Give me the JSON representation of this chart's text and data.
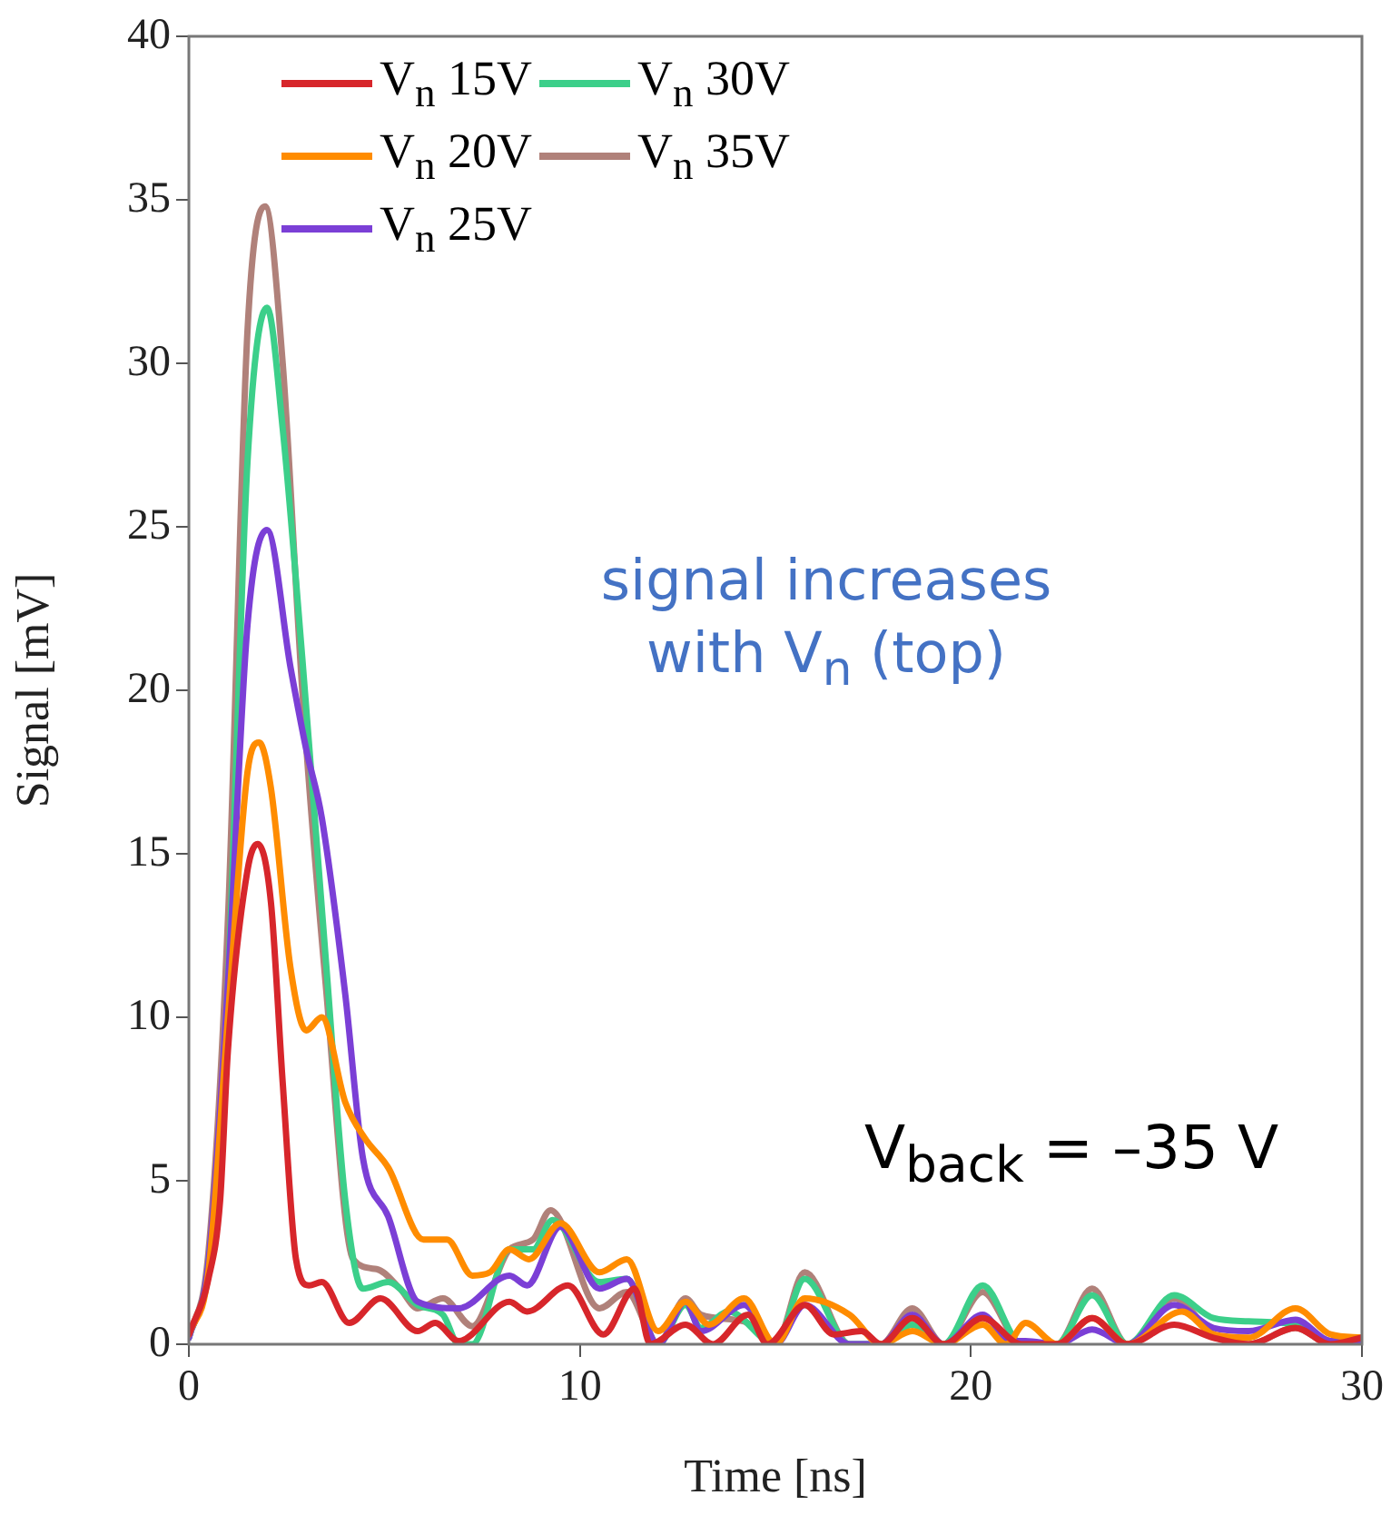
{
  "chart_data": {
    "type": "line",
    "xlabel": "Time [ns]",
    "ylabel": "Signal [mV]",
    "xlim": [
      0,
      30
    ],
    "ylim": [
      0,
      40
    ],
    "xticks": [
      0,
      10,
      20,
      30
    ],
    "yticks": [
      0,
      5,
      10,
      15,
      20,
      25,
      30,
      35,
      40
    ],
    "grid": false,
    "legend": "top left",
    "marker": "none",
    "line_style": "solid",
    "annotations": [
      "signal increases with V$_{n}$ (top)",
      "V$_{back}$ = –35 V"
    ],
    "series": [
      {
        "name": "V$_{n}$ 15V",
        "color": "#d7262b",
        "x": [
          0,
          0.5,
          0.8,
          1.0,
          1.5,
          1.76,
          2.1,
          2.4,
          2.74,
          3.07,
          3.4,
          4.1,
          4.9,
          5.85,
          6.3,
          6.9,
          8.2,
          8.65,
          9.7,
          10.6,
          11.4,
          11.8,
          12.7,
          13.4,
          14.3,
          14.8,
          15.75,
          16.5,
          17.2,
          17.7,
          18.5,
          19.3,
          20.3,
          21.3,
          22.2,
          23.1,
          24.0,
          25.2,
          26.2,
          27.1,
          28.3,
          29.2,
          30
        ],
        "values": [
          0.3,
          2,
          4.4,
          9,
          14.5,
          15.3,
          13.5,
          8,
          2.6,
          1.8,
          1.9,
          0.65,
          1.4,
          0.4,
          0.65,
          0.1,
          1.3,
          1.0,
          1.8,
          0.3,
          1.7,
          0,
          0.6,
          0,
          0.9,
          0,
          1.2,
          0.3,
          0.4,
          0,
          0.8,
          0,
          0.8,
          0,
          0,
          0.8,
          0,
          0.6,
          0.2,
          0,
          0.5,
          0,
          0.2
        ]
      },
      {
        "name": "V$_{n}$ 20V",
        "color": "#ff8c00",
        "x": [
          0,
          0.5,
          1.0,
          1.5,
          1.8,
          2.1,
          2.6,
          3.0,
          3.4,
          4.0,
          4.5,
          5.1,
          6.0,
          6.6,
          7.25,
          7.7,
          8.2,
          8.7,
          9.5,
          10.5,
          11.2,
          12.0,
          12.7,
          13.3,
          14.2,
          15.0,
          15.75,
          16.9,
          17.7,
          18.5,
          19.3,
          20.3,
          20.9,
          21.4,
          22.2,
          23.1,
          24.0,
          25.4,
          26.2,
          27.1,
          28.3,
          29.2,
          30
        ],
        "values": [
          0.3,
          2.2,
          10,
          17.5,
          18.4,
          17,
          11.5,
          9.6,
          10.0,
          7.4,
          6.3,
          5.4,
          3.2,
          3.2,
          2.1,
          2.2,
          2.9,
          2.6,
          3.7,
          2.2,
          2.6,
          0.4,
          1.3,
          0.6,
          1.4,
          0,
          1.4,
          0.9,
          0,
          0.4,
          0,
          0.6,
          0,
          0.65,
          0,
          0.8,
          0,
          1.0,
          0.3,
          0.2,
          1.1,
          0.3,
          0.2
        ]
      },
      {
        "name": "V$_{n}$ 25V",
        "color": "#7b3fd6",
        "x": [
          0,
          0.5,
          1.0,
          1.5,
          2.0,
          2.6,
          3.0,
          3.4,
          4.0,
          4.45,
          5.1,
          5.85,
          6.9,
          8.2,
          8.65,
          9.5,
          10.5,
          11.2,
          12.0,
          12.7,
          13.1,
          14.2,
          15.0,
          15.75,
          16.9,
          17.7,
          18.5,
          19.3,
          20.3,
          21.0,
          21.4,
          22.2,
          23.1,
          24.0,
          25.2,
          26.2,
          27.1,
          28.3,
          29.2,
          30
        ],
        "values": [
          0.2,
          2.5,
          11,
          22,
          24.9,
          20.7,
          18.2,
          16.1,
          10.7,
          5.7,
          3.9,
          1.3,
          1.1,
          2.1,
          1.8,
          3.6,
          1.7,
          2.0,
          0,
          1.3,
          0.4,
          1.2,
          0,
          1.2,
          0,
          0,
          0.9,
          0,
          0.9,
          0.1,
          0.1,
          0,
          0.45,
          0,
          1.2,
          0.5,
          0.4,
          0.75,
          0.1,
          0.1
        ]
      },
      {
        "name": "V$_{n}$ 30V",
        "color": "#3ccf8a",
        "x": [
          0,
          0.5,
          1.0,
          1.5,
          2.0,
          2.4,
          2.9,
          3.5,
          4.0,
          4.45,
          5.1,
          5.85,
          6.5,
          6.9,
          7.25,
          8.2,
          8.8,
          9.3,
          10.5,
          11.2,
          12.0,
          12.7,
          13.1,
          13.8,
          15.0,
          15.75,
          16.9,
          17.7,
          18.5,
          19.3,
          20.3,
          21.3,
          22.2,
          23.1,
          24.0,
          25.2,
          26.2,
          27.1,
          28.3,
          29.2,
          30
        ],
        "values": [
          0.2,
          2.5,
          11,
          27,
          31.7,
          28,
          21,
          11.8,
          4.4,
          1.7,
          1.9,
          1.2,
          0.9,
          0,
          0,
          2.9,
          2.9,
          3.8,
          1.9,
          2.0,
          0,
          1.2,
          0.5,
          1.0,
          0,
          2.0,
          0,
          0,
          0.6,
          0,
          1.8,
          0,
          0,
          1.5,
          0,
          1.5,
          0.8,
          0.7,
          0.6,
          0.1,
          0.1
        ]
      },
      {
        "name": "V$_{n}$ 35V",
        "color": "#b0817a",
        "x": [
          0,
          0.5,
          1.0,
          1.5,
          1.95,
          2.4,
          2.9,
          3.5,
          4.2,
          4.8,
          5.4,
          5.85,
          6.5,
          7.25,
          8.2,
          8.8,
          9.25,
          10.5,
          11.2,
          12.0,
          12.7,
          13.1,
          14.2,
          15.0,
          15.75,
          16.9,
          17.7,
          18.5,
          19.3,
          20.3,
          21.3,
          22.2,
          23.1,
          24.0,
          25.2,
          26.2,
          27.1,
          28.3,
          29.2,
          30
        ],
        "values": [
          0.2,
          2.8,
          13,
          31,
          34.8,
          30,
          20,
          11,
          2.6,
          2.3,
          1.7,
          1.1,
          1.4,
          0.55,
          2.9,
          3.2,
          4.1,
          1.1,
          1.6,
          0,
          1.4,
          0.9,
          0.7,
          0,
          2.2,
          0,
          0,
          1.1,
          0,
          1.6,
          0,
          0,
          1.7,
          0,
          1.4,
          0.3,
          0,
          0.5,
          0,
          0.1
        ]
      }
    ]
  }
}
